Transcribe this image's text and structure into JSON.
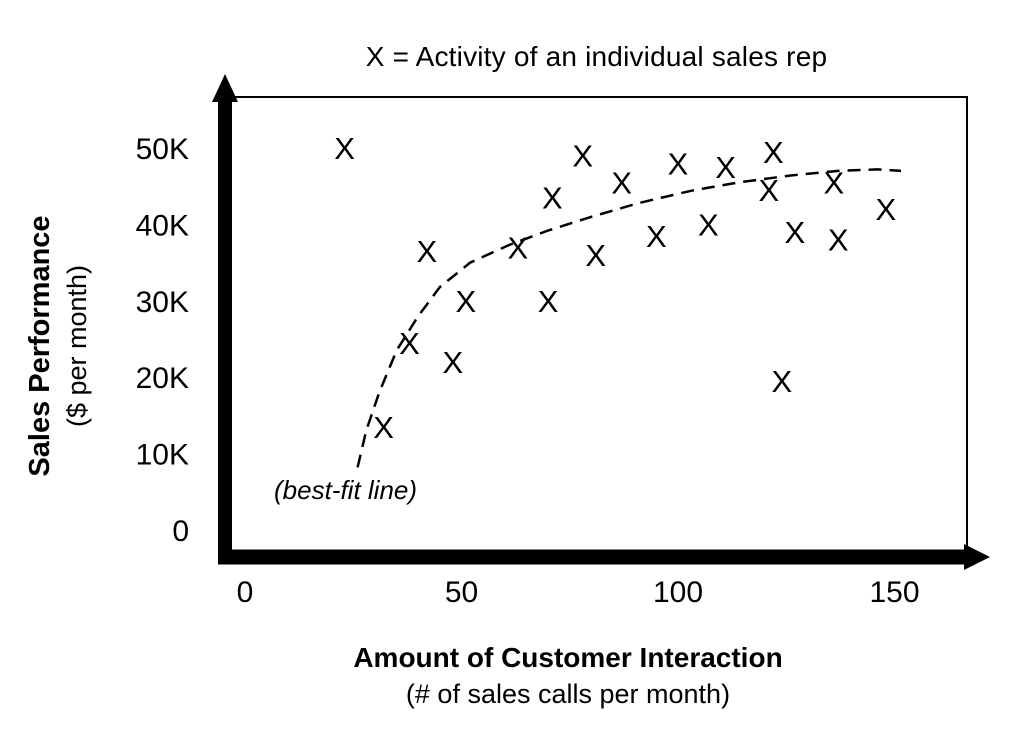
{
  "chart_title": "X = Activity of an individual sales rep",
  "y_axis": {
    "title": "Sales Performance",
    "subtitle": "($ per month)",
    "ticks": [
      {
        "label": "50K",
        "value": 50
      },
      {
        "label": "40K",
        "value": 40
      },
      {
        "label": "30K",
        "value": 30
      },
      {
        "label": "20K",
        "value": 20
      },
      {
        "label": "10K",
        "value": 10
      },
      {
        "label": "0",
        "value": 0
      }
    ]
  },
  "x_axis": {
    "title": "Amount of Customer Interaction",
    "subtitle": "(# of sales calls per month)",
    "ticks": [
      {
        "label": "0",
        "value": 0
      },
      {
        "label": "50",
        "value": 50
      },
      {
        "label": "100",
        "value": 100
      },
      {
        "label": "150",
        "value": 150
      }
    ]
  },
  "chart_data": {
    "type": "scatter",
    "title": "X = Activity of an individual sales rep",
    "xlabel": "Amount of Customer Interaction (# of sales calls per month)",
    "ylabel": "Sales Performance ($ per month)",
    "marker_glyph": "X",
    "xlim": [
      0,
      170
    ],
    "ylim_k": [
      0,
      57
    ],
    "x_ticks": [
      0,
      50,
      100,
      150
    ],
    "y_ticks_k": [
      0,
      10,
      20,
      30,
      40,
      50
    ],
    "grid": false,
    "legend_position": "none",
    "points_x_calls_y_thousand_dollars": [
      {
        "x": 23,
        "y": 50
      },
      {
        "x": 32,
        "y": 13.5
      },
      {
        "x": 38,
        "y": 24.5
      },
      {
        "x": 42,
        "y": 36.5
      },
      {
        "x": 48,
        "y": 22
      },
      {
        "x": 51,
        "y": 30
      },
      {
        "x": 63,
        "y": 37
      },
      {
        "x": 70,
        "y": 30
      },
      {
        "x": 71,
        "y": 43.5
      },
      {
        "x": 78,
        "y": 49
      },
      {
        "x": 81,
        "y": 36
      },
      {
        "x": 87,
        "y": 45.5
      },
      {
        "x": 95,
        "y": 38.5
      },
      {
        "x": 100,
        "y": 48
      },
      {
        "x": 107,
        "y": 40
      },
      {
        "x": 111,
        "y": 47.5
      },
      {
        "x": 121,
        "y": 44.5
      },
      {
        "x": 122,
        "y": 49.5
      },
      {
        "x": 124,
        "y": 19.5
      },
      {
        "x": 127,
        "y": 39
      },
      {
        "x": 136,
        "y": 45.5
      },
      {
        "x": 137,
        "y": 38
      },
      {
        "x": 148,
        "y": 42
      }
    ],
    "best_fit_line": {
      "label": "(best-fit line)",
      "style": "dashed",
      "points": [
        [
          26,
          8.2
        ],
        [
          28,
          13
        ],
        [
          31,
          18
        ],
        [
          35,
          23.5
        ],
        [
          40,
          28
        ],
        [
          45,
          31.8
        ],
        [
          52,
          35
        ],
        [
          61,
          37.3
        ],
        [
          70,
          39.2
        ],
        [
          80,
          41
        ],
        [
          91,
          42.8
        ],
        [
          103,
          44.4
        ],
        [
          114,
          45.5
        ],
        [
          126,
          46.4
        ],
        [
          137,
          47
        ],
        [
          146,
          47.2
        ],
        [
          151.5,
          47
        ]
      ]
    }
  }
}
